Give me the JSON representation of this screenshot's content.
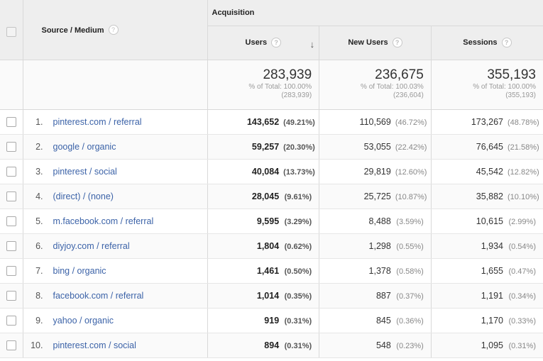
{
  "header": {
    "dimension_label": "Source / Medium",
    "group_label": "Acquisition",
    "metrics": [
      "Users",
      "New Users",
      "Sessions"
    ],
    "help_glyph": "?"
  },
  "totals": [
    {
      "value": "283,939",
      "pct_label": "% of Total: 100.00%",
      "base": "(283,939)"
    },
    {
      "value": "236,675",
      "pct_label": "% of Total: 100.03%",
      "base": "(236,604)"
    },
    {
      "value": "355,193",
      "pct_label": "% of Total: 100.00%",
      "base": "(355,193)"
    }
  ],
  "rows": [
    {
      "idx": "1.",
      "source": "pinterest.com / referral",
      "users": "143,652",
      "users_pct": "(49.21%)",
      "new_users": "110,569",
      "new_users_pct": "(46.72%)",
      "sessions": "173,267",
      "sessions_pct": "(48.78%)"
    },
    {
      "idx": "2.",
      "source": "google / organic",
      "users": "59,257",
      "users_pct": "(20.30%)",
      "new_users": "53,055",
      "new_users_pct": "(22.42%)",
      "sessions": "76,645",
      "sessions_pct": "(21.58%)"
    },
    {
      "idx": "3.",
      "source": "pinterest / social",
      "users": "40,084",
      "users_pct": "(13.73%)",
      "new_users": "29,819",
      "new_users_pct": "(12.60%)",
      "sessions": "45,542",
      "sessions_pct": "(12.82%)"
    },
    {
      "idx": "4.",
      "source": "(direct) / (none)",
      "users": "28,045",
      "users_pct": "(9.61%)",
      "new_users": "25,725",
      "new_users_pct": "(10.87%)",
      "sessions": "35,882",
      "sessions_pct": "(10.10%)"
    },
    {
      "idx": "5.",
      "source": "m.facebook.com / referral",
      "users": "9,595",
      "users_pct": "(3.29%)",
      "new_users": "8,488",
      "new_users_pct": "(3.59%)",
      "sessions": "10,615",
      "sessions_pct": "(2.99%)"
    },
    {
      "idx": "6.",
      "source": "diyjoy.com / referral",
      "users": "1,804",
      "users_pct": "(0.62%)",
      "new_users": "1,298",
      "new_users_pct": "(0.55%)",
      "sessions": "1,934",
      "sessions_pct": "(0.54%)"
    },
    {
      "idx": "7.",
      "source": "bing / organic",
      "users": "1,461",
      "users_pct": "(0.50%)",
      "new_users": "1,378",
      "new_users_pct": "(0.58%)",
      "sessions": "1,655",
      "sessions_pct": "(0.47%)"
    },
    {
      "idx": "8.",
      "source": "facebook.com / referral",
      "users": "1,014",
      "users_pct": "(0.35%)",
      "new_users": "887",
      "new_users_pct": "(0.37%)",
      "sessions": "1,191",
      "sessions_pct": "(0.34%)"
    },
    {
      "idx": "9.",
      "source": "yahoo / organic",
      "users": "919",
      "users_pct": "(0.31%)",
      "new_users": "845",
      "new_users_pct": "(0.36%)",
      "sessions": "1,170",
      "sessions_pct": "(0.33%)"
    },
    {
      "idx": "10.",
      "source": "pinterest.com / social",
      "users": "894",
      "users_pct": "(0.31%)",
      "new_users": "548",
      "new_users_pct": "(0.23%)",
      "sessions": "1,095",
      "sessions_pct": "(0.31%)"
    }
  ],
  "icons": {
    "sort": "arrow-down-icon",
    "help": "help-circle-icon"
  },
  "colors": {
    "link": "#3c63a8",
    "header_bg": "#eeeeee"
  }
}
